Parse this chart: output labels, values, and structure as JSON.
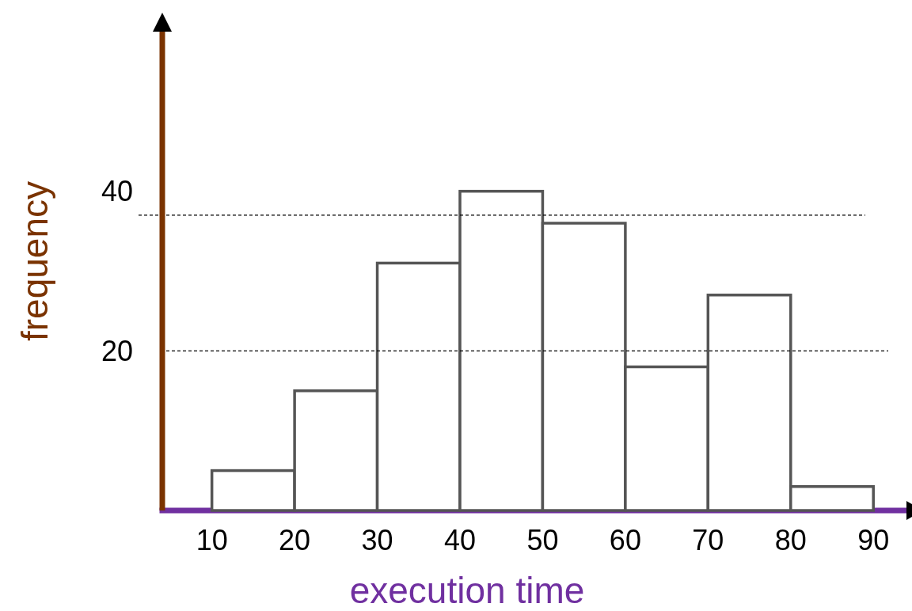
{
  "chart_data": {
    "type": "histogram",
    "xlabel": "execution time",
    "ylabel": "frequency",
    "bins": [
      10,
      20,
      30,
      40,
      50,
      60,
      70,
      80,
      90
    ],
    "values": [
      5,
      15,
      31,
      40,
      36,
      18,
      27,
      3
    ],
    "color": "#ffffff",
    "xlim": [
      4,
      94
    ],
    "ylim": [
      0,
      60
    ],
    "xticks": [
      10,
      20,
      30,
      40,
      50,
      60,
      70,
      80,
      90
    ],
    "yticks": [
      20,
      40
    ],
    "ref_lines": [
      {
        "axis": "y",
        "value": 20,
        "line_style": "dashed",
        "color": "#000000"
      },
      {
        "axis": "y",
        "value": 37,
        "line_style": "dashed",
        "color": "#000000"
      }
    ],
    "grid": false
  }
}
